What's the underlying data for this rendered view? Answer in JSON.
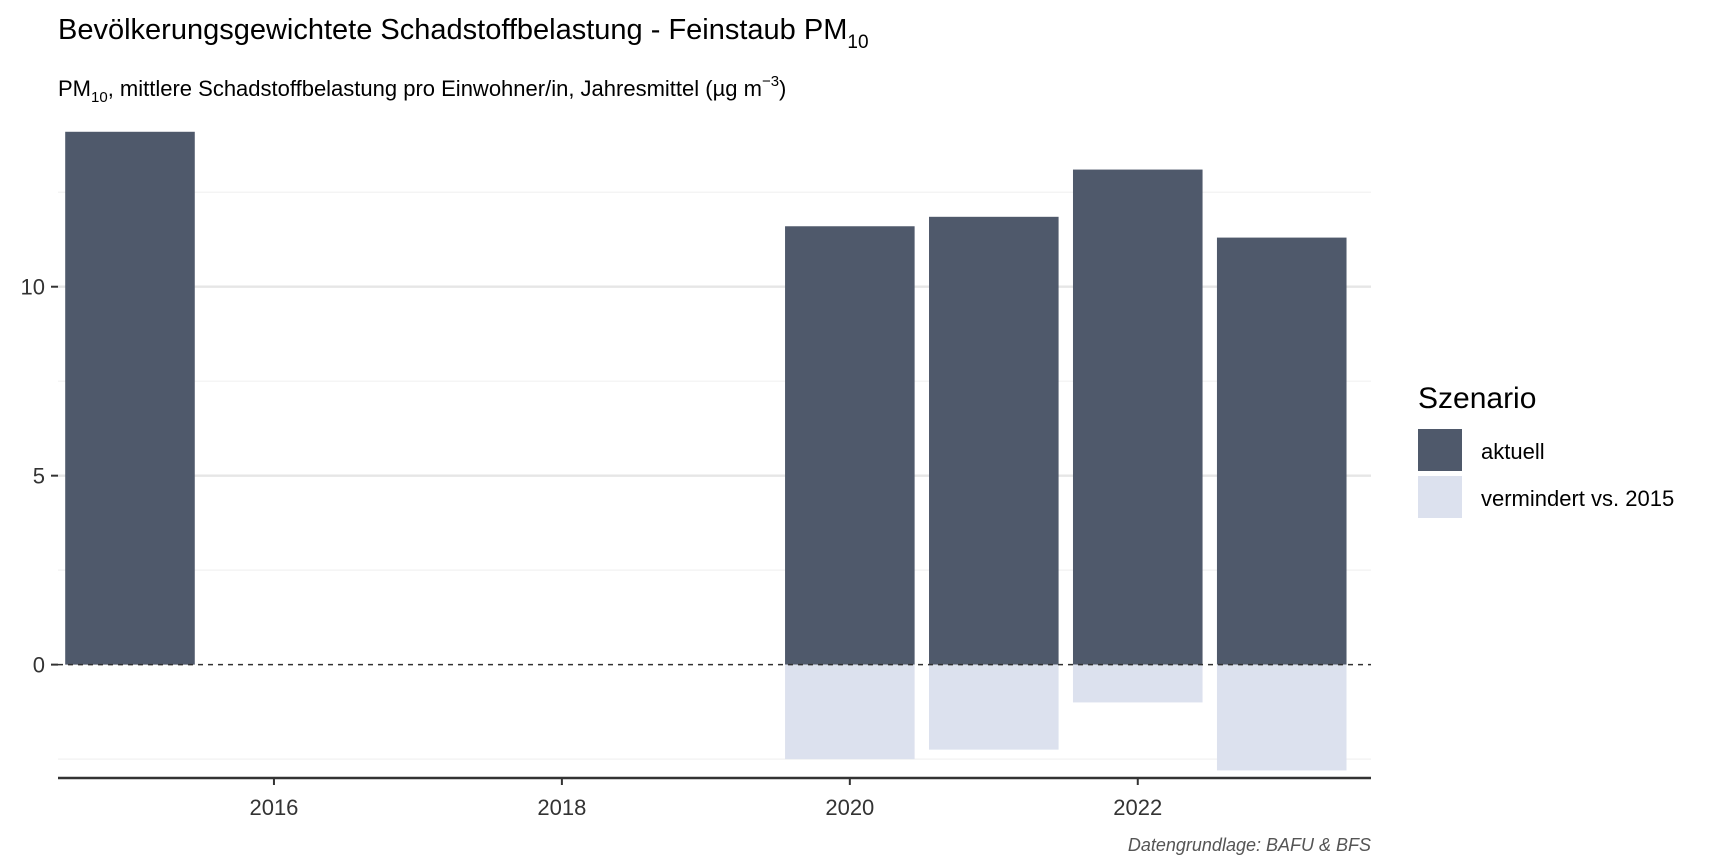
{
  "chart_data": {
    "type": "bar",
    "title": "Bevölkerungsgewichtete Schadstoffbelastung - Feinstaub PM",
    "title_sub": "10",
    "subtitle_prefix": "PM",
    "subtitle_sub": "10",
    "subtitle_main": ", mittlere Schadstoffbelastung pro Einwohner/in, Jahresmittel (µg m",
    "subtitle_sup": "−3",
    "subtitle_end": ")",
    "xlabel": "",
    "ylabel": "",
    "x": [
      2015,
      2020,
      2021,
      2022,
      2023
    ],
    "series": [
      {
        "name": "aktuell",
        "color": "#4F596B",
        "values": [
          14.1,
          11.6,
          11.85,
          13.1,
          11.3
        ]
      },
      {
        "name": "vermindert vs. 2015",
        "color": "#DCE1EE",
        "values": [
          null,
          -2.5,
          -2.25,
          -1.0,
          -2.8
        ]
      }
    ],
    "xlim": [
      2014.5,
      2023.62
    ],
    "ylim": [
      -3,
      14.2
    ],
    "x_ticks": [
      2016,
      2018,
      2020,
      2022
    ],
    "y_ticks": [
      0,
      5,
      10
    ],
    "zero_line": "dashed",
    "grid": true,
    "legend_title": "Szenario",
    "legend_position": "right",
    "caption": "Datengrundlage: BAFU & BFS"
  }
}
